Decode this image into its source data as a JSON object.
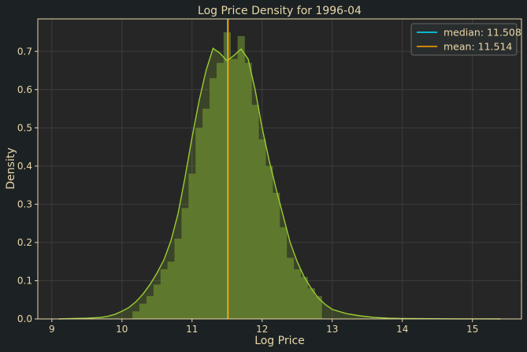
{
  "chart_data": {
    "type": "histogram",
    "title": "Log Price Density for 1996-04",
    "xlabel": "Log Price",
    "ylabel": "Density",
    "xlim": [
      8.8,
      15.7
    ],
    "ylim": [
      0,
      0.785
    ],
    "xticks": [
      9,
      10,
      11,
      12,
      13,
      14,
      15
    ],
    "yticks": [
      0.0,
      0.1,
      0.2,
      0.3,
      0.4,
      0.5,
      0.6,
      0.7
    ],
    "grid": true,
    "legend_position": "top-right",
    "bins": {
      "start": 10.15,
      "width": 0.1,
      "values": [
        0.02,
        0.04,
        0.06,
        0.09,
        0.13,
        0.15,
        0.21,
        0.29,
        0.38,
        0.5,
        0.55,
        0.63,
        0.67,
        0.75,
        0.68,
        0.74,
        0.67,
        0.56,
        0.47,
        0.4,
        0.33,
        0.24,
        0.16,
        0.13,
        0.11,
        0.08,
        0.06
      ]
    },
    "kde": {
      "x": [
        9.1,
        9.3,
        9.5,
        9.7,
        9.8,
        9.9,
        10.0,
        10.1,
        10.2,
        10.3,
        10.4,
        10.5,
        10.6,
        10.7,
        10.8,
        10.9,
        11.0,
        11.1,
        11.2,
        11.3,
        11.4,
        11.5,
        11.6,
        11.7,
        11.8,
        11.9,
        12.0,
        12.1,
        12.2,
        12.3,
        12.4,
        12.5,
        12.6,
        12.7,
        12.8,
        12.9,
        13.0,
        13.2,
        13.4,
        13.6,
        13.8,
        14.0,
        14.4,
        14.8,
        15.2,
        15.4
      ],
      "y": [
        0.0,
        0.001,
        0.002,
        0.004,
        0.007,
        0.012,
        0.02,
        0.03,
        0.045,
        0.065,
        0.09,
        0.12,
        0.155,
        0.205,
        0.275,
        0.37,
        0.475,
        0.57,
        0.65,
        0.708,
        0.695,
        0.675,
        0.69,
        0.706,
        0.68,
        0.6,
        0.5,
        0.415,
        0.34,
        0.27,
        0.2,
        0.15,
        0.11,
        0.08,
        0.055,
        0.038,
        0.025,
        0.014,
        0.008,
        0.004,
        0.002,
        0.001,
        0.0005,
        0.0002,
        0.0001,
        0.0
      ]
    },
    "lines": [
      {
        "name": "median: 11.508",
        "x": 11.508,
        "color": "#00e5ff"
      },
      {
        "name": "mean: 11.514",
        "x": 11.514,
        "color": "#ffa500"
      }
    ],
    "colors": {
      "bars": "#556b2f",
      "kde": "#9acd32",
      "background": "#262626",
      "figure": "#1c2124",
      "text": "#e8d8a8",
      "spine": "#e8d8a8",
      "grid": "#3d3d3d"
    }
  }
}
